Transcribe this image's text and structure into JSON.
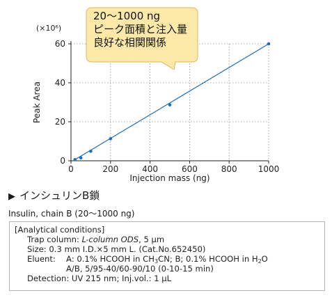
{
  "chart_data": {
    "type": "scatter",
    "title": "",
    "xlabel": "Injection mass (ng)",
    "ylabel": "Peak Area",
    "y_multiplier": "(×10⁶)",
    "xlim": [
      0,
      1000
    ],
    "ylim": [
      0,
      60
    ],
    "x_ticks": [
      "0",
      "200",
      "400",
      "600",
      "800",
      "1000"
    ],
    "y_ticks": [
      "0",
      "20",
      "40",
      "60"
    ],
    "grid": "both",
    "series": [
      {
        "x": [
          20,
          50,
          100,
          200,
          500,
          1000
        ],
        "y": [
          0.6,
          1.5,
          4.9,
          11.3,
          28.7,
          60.0
        ],
        "color": "#1f6fb5",
        "fit_line": [
          [
            20,
            0.6
          ],
          [
            1000,
            60.0
          ]
        ]
      }
    ],
    "annotation": {
      "lines": [
        "20～1000 ng",
        "ピーク面積と注入量",
        "良好な相関関係"
      ],
      "fill": "#fce9a9",
      "stroke": "#d9b864"
    }
  },
  "heading": {
    "marker": "▶",
    "text": "インシュリンB鎖"
  },
  "subtitle": "Insulin, chain B (20～1000 ng)",
  "conditions": {
    "header": "[Analytical  conditions]",
    "trap_label": "Trap column: ",
    "trap_value": "L-column ODS",
    "trap_suffix": ", 5 μm",
    "size": "Size: 0.3 mm I.D.×5 mm L. (Cat.No.652450)",
    "eluent_label": "Eluent:",
    "eluent_a1": "A: 0.1% HCOOH in CH",
    "eluent_a_sub1": "3",
    "eluent_a2": "CN; B; 0.1% HCOOH in H",
    "eluent_a_sub2": "2",
    "eluent_a3": "O",
    "eluent_b": "A/B, 5/95-40/60-90/10 (0-10-15 min)",
    "detection": "Detection: UV 215 nm; Inj.vol.: 1 μL"
  }
}
